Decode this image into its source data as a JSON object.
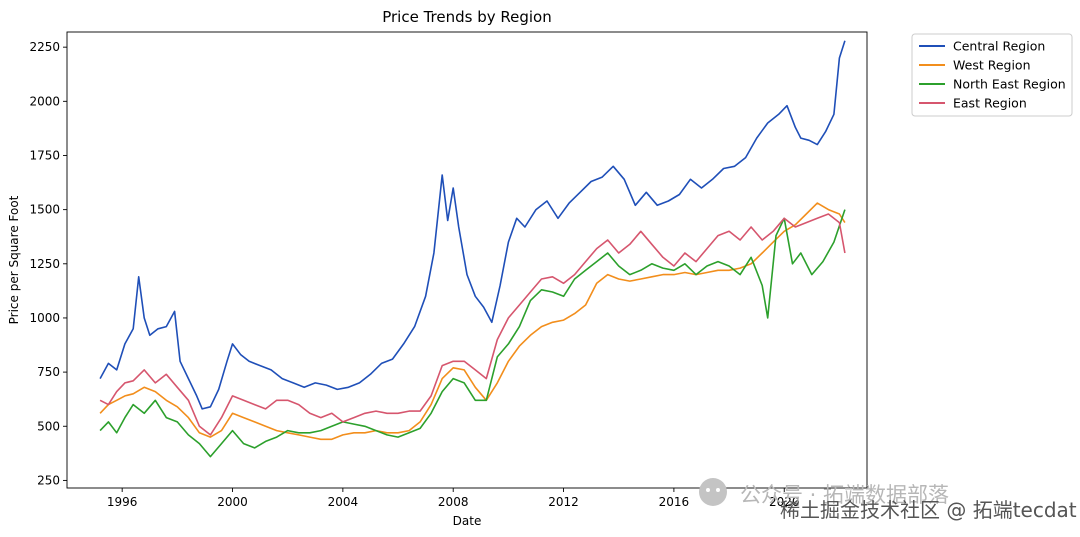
{
  "chart_data": {
    "type": "line",
    "title": "Price Trends by Region",
    "xlabel": "Date",
    "ylabel": "Price per Square Foot",
    "xlim": [
      1994.0,
      2023.0
    ],
    "ylim": [
      215,
      2320
    ],
    "x_ticks": [
      1996,
      2000,
      2004,
      2008,
      2012,
      2016,
      2020
    ],
    "x_tick_labels": [
      "1996",
      "2000",
      "2004",
      "2008",
      "2012",
      "2016",
      "2020"
    ],
    "y_ticks": [
      250,
      500,
      750,
      1000,
      1250,
      1500,
      1750,
      2000,
      2250
    ],
    "y_tick_labels": [
      "250",
      "500",
      "750",
      "1000",
      "1250",
      "1500",
      "1750",
      "2000",
      "2250"
    ],
    "grid": false,
    "legend_position": "outside-top-right",
    "series": [
      {
        "name": "Central Region",
        "color": "#1f4fb8",
        "points": [
          [
            1995.2,
            720
          ],
          [
            1995.5,
            790
          ],
          [
            1995.8,
            760
          ],
          [
            1996.1,
            880
          ],
          [
            1996.4,
            950
          ],
          [
            1996.6,
            1190
          ],
          [
            1996.8,
            1000
          ],
          [
            1997.0,
            920
          ],
          [
            1997.3,
            950
          ],
          [
            1997.6,
            960
          ],
          [
            1997.9,
            1030
          ],
          [
            1998.1,
            800
          ],
          [
            1998.4,
            720
          ],
          [
            1998.7,
            640
          ],
          [
            1998.9,
            580
          ],
          [
            1999.2,
            590
          ],
          [
            1999.5,
            670
          ],
          [
            1999.8,
            800
          ],
          [
            2000.0,
            880
          ],
          [
            2000.3,
            830
          ],
          [
            2000.6,
            800
          ],
          [
            2001.0,
            780
          ],
          [
            2001.4,
            760
          ],
          [
            2001.8,
            720
          ],
          [
            2002.2,
            700
          ],
          [
            2002.6,
            680
          ],
          [
            2003.0,
            700
          ],
          [
            2003.4,
            690
          ],
          [
            2003.8,
            670
          ],
          [
            2004.2,
            680
          ],
          [
            2004.6,
            700
          ],
          [
            2005.0,
            740
          ],
          [
            2005.4,
            790
          ],
          [
            2005.8,
            810
          ],
          [
            2006.2,
            880
          ],
          [
            2006.6,
            960
          ],
          [
            2007.0,
            1100
          ],
          [
            2007.3,
            1300
          ],
          [
            2007.6,
            1660
          ],
          [
            2007.8,
            1450
          ],
          [
            2008.0,
            1600
          ],
          [
            2008.2,
            1420
          ],
          [
            2008.5,
            1200
          ],
          [
            2008.8,
            1100
          ],
          [
            2009.1,
            1050
          ],
          [
            2009.4,
            980
          ],
          [
            2009.7,
            1150
          ],
          [
            2010.0,
            1350
          ],
          [
            2010.3,
            1460
          ],
          [
            2010.6,
            1420
          ],
          [
            2011.0,
            1500
          ],
          [
            2011.4,
            1540
          ],
          [
            2011.8,
            1460
          ],
          [
            2012.2,
            1530
          ],
          [
            2012.6,
            1580
          ],
          [
            2013.0,
            1630
          ],
          [
            2013.4,
            1650
          ],
          [
            2013.8,
            1700
          ],
          [
            2014.2,
            1640
          ],
          [
            2014.6,
            1520
          ],
          [
            2015.0,
            1580
          ],
          [
            2015.4,
            1520
          ],
          [
            2015.8,
            1540
          ],
          [
            2016.2,
            1570
          ],
          [
            2016.6,
            1640
          ],
          [
            2017.0,
            1600
          ],
          [
            2017.4,
            1640
          ],
          [
            2017.8,
            1690
          ],
          [
            2018.2,
            1700
          ],
          [
            2018.6,
            1740
          ],
          [
            2019.0,
            1830
          ],
          [
            2019.4,
            1900
          ],
          [
            2019.8,
            1940
          ],
          [
            2020.1,
            1980
          ],
          [
            2020.4,
            1880
          ],
          [
            2020.6,
            1830
          ],
          [
            2020.9,
            1820
          ],
          [
            2021.2,
            1800
          ],
          [
            2021.5,
            1860
          ],
          [
            2021.8,
            1940
          ],
          [
            2022.0,
            2200
          ],
          [
            2022.2,
            2280
          ]
        ]
      },
      {
        "name": "West Region",
        "color": "#f28e1c",
        "points": [
          [
            1995.2,
            560
          ],
          [
            1995.5,
            600
          ],
          [
            1995.8,
            620
          ],
          [
            1996.1,
            640
          ],
          [
            1996.4,
            650
          ],
          [
            1996.8,
            680
          ],
          [
            1997.2,
            660
          ],
          [
            1997.6,
            620
          ],
          [
            1998.0,
            590
          ],
          [
            1998.4,
            540
          ],
          [
            1998.8,
            470
          ],
          [
            1999.2,
            450
          ],
          [
            1999.6,
            480
          ],
          [
            2000.0,
            560
          ],
          [
            2000.4,
            540
          ],
          [
            2000.8,
            520
          ],
          [
            2001.2,
            500
          ],
          [
            2001.6,
            480
          ],
          [
            2002.0,
            470
          ],
          [
            2002.4,
            460
          ],
          [
            2002.8,
            450
          ],
          [
            2003.2,
            440
          ],
          [
            2003.6,
            440
          ],
          [
            2004.0,
            460
          ],
          [
            2004.4,
            470
          ],
          [
            2004.8,
            470
          ],
          [
            2005.2,
            480
          ],
          [
            2005.6,
            470
          ],
          [
            2006.0,
            470
          ],
          [
            2006.4,
            480
          ],
          [
            2006.8,
            520
          ],
          [
            2007.2,
            600
          ],
          [
            2007.6,
            720
          ],
          [
            2008.0,
            770
          ],
          [
            2008.4,
            760
          ],
          [
            2008.8,
            680
          ],
          [
            2009.2,
            620
          ],
          [
            2009.6,
            700
          ],
          [
            2010.0,
            800
          ],
          [
            2010.4,
            870
          ],
          [
            2010.8,
            920
          ],
          [
            2011.2,
            960
          ],
          [
            2011.6,
            980
          ],
          [
            2012.0,
            990
          ],
          [
            2012.4,
            1020
          ],
          [
            2012.8,
            1060
          ],
          [
            2013.2,
            1160
          ],
          [
            2013.6,
            1200
          ],
          [
            2014.0,
            1180
          ],
          [
            2014.4,
            1170
          ],
          [
            2014.8,
            1180
          ],
          [
            2015.2,
            1190
          ],
          [
            2015.6,
            1200
          ],
          [
            2016.0,
            1200
          ],
          [
            2016.4,
            1210
          ],
          [
            2016.8,
            1200
          ],
          [
            2017.2,
            1210
          ],
          [
            2017.6,
            1220
          ],
          [
            2018.0,
            1220
          ],
          [
            2018.4,
            1230
          ],
          [
            2018.8,
            1250
          ],
          [
            2019.2,
            1300
          ],
          [
            2019.6,
            1350
          ],
          [
            2020.0,
            1400
          ],
          [
            2020.4,
            1430
          ],
          [
            2020.8,
            1480
          ],
          [
            2021.2,
            1530
          ],
          [
            2021.6,
            1500
          ],
          [
            2022.0,
            1480
          ],
          [
            2022.2,
            1440
          ]
        ]
      },
      {
        "name": "North East Region",
        "color": "#2ca02c",
        "points": [
          [
            1995.2,
            480
          ],
          [
            1995.5,
            520
          ],
          [
            1995.8,
            470
          ],
          [
            1996.1,
            540
          ],
          [
            1996.4,
            600
          ],
          [
            1996.8,
            560
          ],
          [
            1997.2,
            620
          ],
          [
            1997.6,
            540
          ],
          [
            1998.0,
            520
          ],
          [
            1998.4,
            460
          ],
          [
            1998.8,
            420
          ],
          [
            1999.2,
            360
          ],
          [
            1999.6,
            420
          ],
          [
            2000.0,
            480
          ],
          [
            2000.4,
            420
          ],
          [
            2000.8,
            400
          ],
          [
            2001.2,
            430
          ],
          [
            2001.6,
            450
          ],
          [
            2002.0,
            480
          ],
          [
            2002.4,
            470
          ],
          [
            2002.8,
            470
          ],
          [
            2003.2,
            480
          ],
          [
            2003.6,
            500
          ],
          [
            2004.0,
            520
          ],
          [
            2004.4,
            510
          ],
          [
            2004.8,
            500
          ],
          [
            2005.2,
            480
          ],
          [
            2005.6,
            460
          ],
          [
            2006.0,
            450
          ],
          [
            2006.4,
            470
          ],
          [
            2006.8,
            490
          ],
          [
            2007.2,
            560
          ],
          [
            2007.6,
            660
          ],
          [
            2008.0,
            720
          ],
          [
            2008.4,
            700
          ],
          [
            2008.8,
            620
          ],
          [
            2009.2,
            620
          ],
          [
            2009.6,
            820
          ],
          [
            2010.0,
            880
          ],
          [
            2010.4,
            960
          ],
          [
            2010.8,
            1080
          ],
          [
            2011.2,
            1130
          ],
          [
            2011.6,
            1120
          ],
          [
            2012.0,
            1100
          ],
          [
            2012.4,
            1180
          ],
          [
            2012.8,
            1220
          ],
          [
            2013.2,
            1260
          ],
          [
            2013.6,
            1300
          ],
          [
            2014.0,
            1240
          ],
          [
            2014.4,
            1200
          ],
          [
            2014.8,
            1220
          ],
          [
            2015.2,
            1250
          ],
          [
            2015.6,
            1230
          ],
          [
            2016.0,
            1220
          ],
          [
            2016.4,
            1250
          ],
          [
            2016.8,
            1200
          ],
          [
            2017.2,
            1240
          ],
          [
            2017.6,
            1260
          ],
          [
            2018.0,
            1240
          ],
          [
            2018.4,
            1200
          ],
          [
            2018.8,
            1280
          ],
          [
            2019.2,
            1150
          ],
          [
            2019.4,
            1000
          ],
          [
            2019.7,
            1380
          ],
          [
            2020.0,
            1460
          ],
          [
            2020.3,
            1250
          ],
          [
            2020.6,
            1300
          ],
          [
            2021.0,
            1200
          ],
          [
            2021.4,
            1260
          ],
          [
            2021.8,
            1350
          ],
          [
            2022.2,
            1500
          ]
        ]
      },
      {
        "name": "East Region",
        "color": "#d6566e",
        "points": [
          [
            1995.2,
            620
          ],
          [
            1995.5,
            600
          ],
          [
            1995.8,
            660
          ],
          [
            1996.1,
            700
          ],
          [
            1996.4,
            710
          ],
          [
            1996.8,
            760
          ],
          [
            1997.2,
            700
          ],
          [
            1997.6,
            740
          ],
          [
            1998.0,
            680
          ],
          [
            1998.4,
            620
          ],
          [
            1998.8,
            500
          ],
          [
            1999.2,
            460
          ],
          [
            1999.6,
            540
          ],
          [
            2000.0,
            640
          ],
          [
            2000.4,
            620
          ],
          [
            2000.8,
            600
          ],
          [
            2001.2,
            580
          ],
          [
            2001.6,
            620
          ],
          [
            2002.0,
            620
          ],
          [
            2002.4,
            600
          ],
          [
            2002.8,
            560
          ],
          [
            2003.2,
            540
          ],
          [
            2003.6,
            560
          ],
          [
            2004.0,
            520
          ],
          [
            2004.4,
            540
          ],
          [
            2004.8,
            560
          ],
          [
            2005.2,
            570
          ],
          [
            2005.6,
            560
          ],
          [
            2006.0,
            560
          ],
          [
            2006.4,
            570
          ],
          [
            2006.8,
            570
          ],
          [
            2007.2,
            640
          ],
          [
            2007.6,
            780
          ],
          [
            2008.0,
            800
          ],
          [
            2008.4,
            800
          ],
          [
            2008.8,
            760
          ],
          [
            2009.2,
            720
          ],
          [
            2009.6,
            900
          ],
          [
            2010.0,
            1000
          ],
          [
            2010.4,
            1060
          ],
          [
            2010.8,
            1120
          ],
          [
            2011.2,
            1180
          ],
          [
            2011.6,
            1190
          ],
          [
            2012.0,
            1160
          ],
          [
            2012.4,
            1200
          ],
          [
            2012.8,
            1260
          ],
          [
            2013.2,
            1320
          ],
          [
            2013.6,
            1360
          ],
          [
            2014.0,
            1300
          ],
          [
            2014.4,
            1340
          ],
          [
            2014.8,
            1400
          ],
          [
            2015.2,
            1340
          ],
          [
            2015.6,
            1280
          ],
          [
            2016.0,
            1240
          ],
          [
            2016.4,
            1300
          ],
          [
            2016.8,
            1260
          ],
          [
            2017.2,
            1320
          ],
          [
            2017.6,
            1380
          ],
          [
            2018.0,
            1400
          ],
          [
            2018.4,
            1360
          ],
          [
            2018.8,
            1420
          ],
          [
            2019.2,
            1360
          ],
          [
            2019.6,
            1400
          ],
          [
            2020.0,
            1460
          ],
          [
            2020.4,
            1420
          ],
          [
            2020.8,
            1440
          ],
          [
            2021.2,
            1460
          ],
          [
            2021.6,
            1480
          ],
          [
            2022.0,
            1440
          ],
          [
            2022.2,
            1300
          ]
        ]
      }
    ]
  },
  "watermark": {
    "line1": "公众号 · 拓端数据部落",
    "line2": "稀土掘金技术社区 @ 拓端tecdat"
  }
}
